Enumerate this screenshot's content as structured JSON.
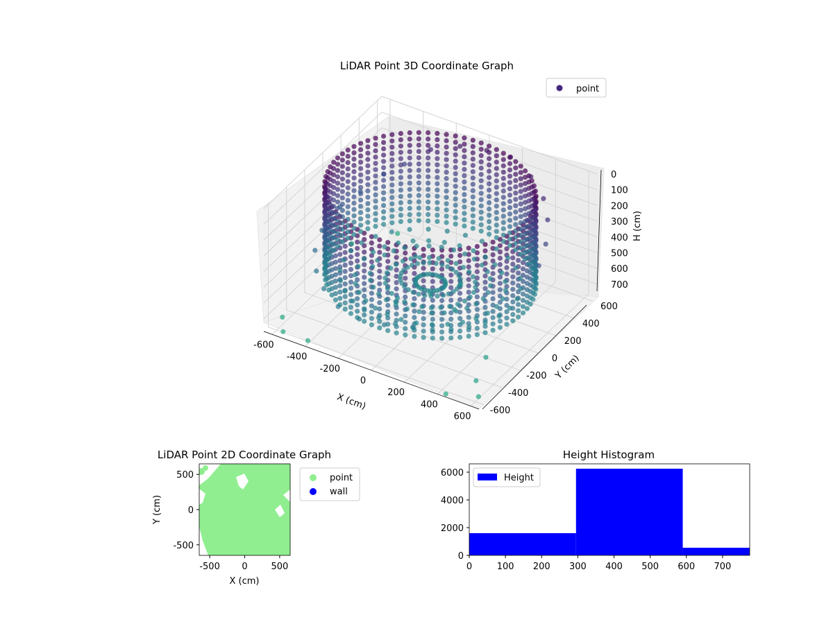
{
  "chart_data": [
    {
      "type": "scatter",
      "title": "LiDAR Point 3D Coordinate Graph",
      "xlabel": "X (cm)",
      "ylabel": "Y (cm)",
      "zlabel": "H (cm)",
      "xlim": [
        -650,
        650
      ],
      "ylim": [
        -650,
        650
      ],
      "zlim": [
        780,
        0
      ],
      "x_ticks": [
        -600,
        -400,
        -200,
        0,
        200,
        400,
        600
      ],
      "y_ticks": [
        -600,
        -400,
        -200,
        0,
        200,
        400,
        600
      ],
      "z_ticks": [
        0,
        100,
        200,
        300,
        400,
        500,
        600,
        700
      ],
      "legend": [
        "point"
      ],
      "legend_position": "upper right",
      "colormap": "viridis",
      "series": [
        {
          "name": "point",
          "points": [
            [
              -500,
              400,
              300
            ],
            [
              -420,
              480,
              250
            ],
            [
              -300,
              550,
              150
            ],
            [
              -150,
              600,
              100
            ],
            [
              0,
              620,
              80
            ],
            [
              150,
              610,
              60
            ],
            [
              300,
              560,
              100
            ],
            [
              420,
              480,
              150
            ],
            [
              500,
              380,
              200
            ],
            [
              560,
              250,
              260
            ],
            [
              600,
              100,
              300
            ],
            [
              -560,
              250,
              350
            ],
            [
              -600,
              100,
              380
            ],
            [
              -600,
              -100,
              420
            ],
            [
              -560,
              -250,
              450
            ],
            [
              -480,
              -380,
              480
            ],
            [
              -380,
              -480,
              500
            ],
            [
              -250,
              -560,
              520
            ],
            [
              -100,
              -600,
              520
            ],
            [
              50,
              -600,
              500
            ],
            [
              200,
              -560,
              480
            ],
            [
              -200,
              200,
              600
            ],
            [
              0,
              0,
              650
            ],
            [
              200,
              -100,
              620
            ],
            [
              -100,
              -200,
              630
            ],
            [
              100,
              150,
              640
            ],
            [
              -620,
              -500,
              760
            ],
            [
              -550,
              -620,
              760
            ],
            [
              -400,
              -620,
              760
            ],
            [
              -640,
              300,
              740
            ],
            [
              -500,
              550,
              760
            ],
            [
              500,
              -300,
              700
            ],
            [
              550,
              -500,
              720
            ],
            [
              620,
              -600,
              740
            ],
            [
              450,
              -650,
              760
            ]
          ]
        }
      ]
    },
    {
      "type": "scatter",
      "title": "LiDAR Point 2D Coordinate Graph",
      "xlabel": "X (cm)",
      "ylabel": "Y (cm)",
      "xlim": [
        -650,
        650
      ],
      "ylim": [
        -650,
        650
      ],
      "x_ticks": [
        -500,
        0,
        500
      ],
      "y_ticks": [
        -500,
        0,
        500
      ],
      "legend": [
        "point",
        "wall"
      ],
      "legend_position": "outside right",
      "series": [
        {
          "name": "point",
          "color": "#90ee90",
          "shape": "filled disc covering most of the area"
        },
        {
          "name": "wall",
          "color": "#0000ff",
          "points": []
        }
      ]
    },
    {
      "type": "bar",
      "title": "Height Histogram",
      "xlim": [
        0,
        775
      ],
      "ylim": [
        0,
        6600
      ],
      "x_ticks": [
        0,
        100,
        200,
        300,
        400,
        500,
        600,
        700
      ],
      "y_ticks": [
        0,
        2000,
        4000,
        6000
      ],
      "legend": [
        "Height"
      ],
      "legend_position": "upper left",
      "color": "#0000ff",
      "bins": [
        {
          "start": 0,
          "end": 295,
          "count": 1600
        },
        {
          "start": 295,
          "end": 590,
          "count": 6250
        },
        {
          "start": 590,
          "end": 775,
          "count": 550
        }
      ]
    }
  ]
}
